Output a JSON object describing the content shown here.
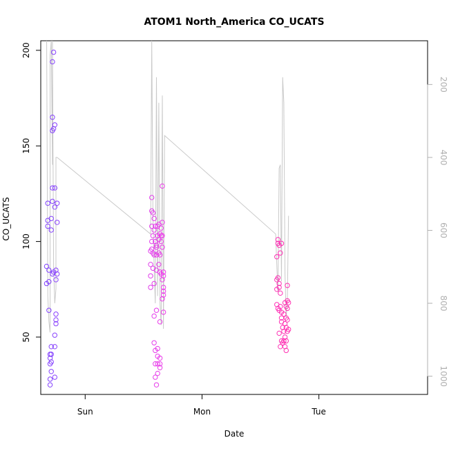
{
  "chart_data": {
    "type": "scatter",
    "title": "ATOM1 North_America CO_UCATS",
    "xlabel": "Date",
    "ylabel": "CO_UCATS",
    "right_axis": {
      "label": "",
      "reversed": true,
      "ticks": [
        200,
        400,
        600,
        800,
        1000
      ],
      "range": [
        80,
        1050
      ],
      "color": "#b0b0b0"
    },
    "x_ticks": [
      {
        "label": "Sun",
        "x": 0
      },
      {
        "label": "Mon",
        "x": 1
      },
      {
        "label": "Tue",
        "x": 2
      }
    ],
    "xlim": [
      -0.38,
      2.93
    ],
    "ylim": [
      20,
      205
    ],
    "y_ticks": [
      50,
      100,
      150,
      200
    ],
    "grid": false,
    "legend": "none",
    "colors": {
      "early": "#7f3fff",
      "mid": "#f03ae8",
      "late": "#ff2fb0",
      "line": "#c9c9c9",
      "axis": "#000000"
    },
    "series": [
      {
        "points": [
          {
            "x": -0.33,
            "y": 87
          },
          {
            "x": -0.33,
            "y": 78
          },
          {
            "x": -0.32,
            "y": 111
          },
          {
            "x": -0.32,
            "y": 108
          },
          {
            "x": -0.32,
            "y": 120
          },
          {
            "x": -0.31,
            "y": 64
          },
          {
            "x": -0.31,
            "y": 85
          },
          {
            "x": -0.31,
            "y": 79
          },
          {
            "x": -0.3,
            "y": 41
          },
          {
            "x": -0.3,
            "y": 39
          },
          {
            "x": -0.3,
            "y": 36
          },
          {
            "x": -0.3,
            "y": 28
          },
          {
            "x": -0.3,
            "y": 25
          },
          {
            "x": -0.29,
            "y": 45
          },
          {
            "x": -0.29,
            "y": 41
          },
          {
            "x": -0.29,
            "y": 37
          },
          {
            "x": -0.29,
            "y": 32
          },
          {
            "x": -0.29,
            "y": 106
          },
          {
            "x": -0.29,
            "y": 112
          },
          {
            "x": -0.28,
            "y": 128
          },
          {
            "x": -0.28,
            "y": 158
          },
          {
            "x": -0.28,
            "y": 194
          },
          {
            "x": -0.28,
            "y": 165
          },
          {
            "x": -0.28,
            "y": 83
          },
          {
            "x": -0.28,
            "y": 121
          },
          {
            "x": -0.27,
            "y": 84
          },
          {
            "x": -0.27,
            "y": 159
          },
          {
            "x": -0.27,
            "y": 199
          },
          {
            "x": -0.26,
            "y": 161
          },
          {
            "x": -0.26,
            "y": 118
          },
          {
            "x": -0.26,
            "y": 128
          },
          {
            "x": -0.26,
            "y": 51
          },
          {
            "x": -0.26,
            "y": 45
          },
          {
            "x": -0.26,
            "y": 29
          },
          {
            "x": -0.25,
            "y": 57
          },
          {
            "x": -0.25,
            "y": 59
          },
          {
            "x": -0.25,
            "y": 62
          },
          {
            "x": -0.25,
            "y": 85
          },
          {
            "x": -0.25,
            "y": 80
          },
          {
            "x": -0.24,
            "y": 83
          },
          {
            "x": -0.24,
            "y": 110
          },
          {
            "x": -0.24,
            "y": 120
          },
          {
            "x": 0.56,
            "y": 95
          },
          {
            "x": 0.56,
            "y": 88
          },
          {
            "x": 0.56,
            "y": 82
          },
          {
            "x": 0.56,
            "y": 76
          },
          {
            "x": 0.57,
            "y": 123
          },
          {
            "x": 0.57,
            "y": 116
          },
          {
            "x": 0.57,
            "y": 108
          },
          {
            "x": 0.57,
            "y": 100
          },
          {
            "x": 0.57,
            "y": 96
          },
          {
            "x": 0.58,
            "y": 115
          },
          {
            "x": 0.58,
            "y": 103
          },
          {
            "x": 0.58,
            "y": 94
          },
          {
            "x": 0.58,
            "y": 86
          },
          {
            "x": 0.59,
            "y": 112
          },
          {
            "x": 0.59,
            "y": 106
          },
          {
            "x": 0.59,
            "y": 93
          },
          {
            "x": 0.59,
            "y": 78
          },
          {
            "x": 0.59,
            "y": 61
          },
          {
            "x": 0.59,
            "y": 47
          },
          {
            "x": 0.6,
            "y": 43
          },
          {
            "x": 0.6,
            "y": 36
          },
          {
            "x": 0.6,
            "y": 29
          },
          {
            "x": 0.6,
            "y": 108
          },
          {
            "x": 0.6,
            "y": 100
          },
          {
            "x": 0.61,
            "y": 97
          },
          {
            "x": 0.61,
            "y": 98
          },
          {
            "x": 0.61,
            "y": 93
          },
          {
            "x": 0.61,
            "y": 85
          },
          {
            "x": 0.61,
            "y": 64
          },
          {
            "x": 0.61,
            "y": 25
          },
          {
            "x": 0.62,
            "y": 36
          },
          {
            "x": 0.62,
            "y": 31
          },
          {
            "x": 0.62,
            "y": 44
          },
          {
            "x": 0.62,
            "y": 40
          },
          {
            "x": 0.62,
            "y": 108
          },
          {
            "x": 0.62,
            "y": 103
          },
          {
            "x": 0.63,
            "y": 101
          },
          {
            "x": 0.63,
            "y": 94
          },
          {
            "x": 0.63,
            "y": 88
          },
          {
            "x": 0.63,
            "y": 109
          },
          {
            "x": 0.64,
            "y": 104
          },
          {
            "x": 0.64,
            "y": 93
          },
          {
            "x": 0.64,
            "y": 84
          },
          {
            "x": 0.64,
            "y": 58
          },
          {
            "x": 0.64,
            "y": 36
          },
          {
            "x": 0.64,
            "y": 39
          },
          {
            "x": 0.64,
            "y": 34
          },
          {
            "x": 0.65,
            "y": 107
          },
          {
            "x": 0.65,
            "y": 100
          },
          {
            "x": 0.65,
            "y": 103
          },
          {
            "x": 0.65,
            "y": 83
          },
          {
            "x": 0.66,
            "y": 110
          },
          {
            "x": 0.66,
            "y": 97
          },
          {
            "x": 0.66,
            "y": 103
          },
          {
            "x": 0.66,
            "y": 80
          },
          {
            "x": 0.66,
            "y": 70
          },
          {
            "x": 0.66,
            "y": 129
          },
          {
            "x": 0.67,
            "y": 76
          },
          {
            "x": 0.67,
            "y": 74
          },
          {
            "x": 0.67,
            "y": 72
          },
          {
            "x": 0.67,
            "y": 82
          },
          {
            "x": 0.67,
            "y": 84
          },
          {
            "x": 0.67,
            "y": 63
          },
          {
            "x": 1.64,
            "y": 75
          },
          {
            "x": 1.64,
            "y": 67
          },
          {
            "x": 1.64,
            "y": 80
          },
          {
            "x": 1.64,
            "y": 92
          },
          {
            "x": 1.65,
            "y": 101
          },
          {
            "x": 1.65,
            "y": 99
          },
          {
            "x": 1.65,
            "y": 81
          },
          {
            "x": 1.65,
            "y": 65
          },
          {
            "x": 1.66,
            "y": 98
          },
          {
            "x": 1.66,
            "y": 78
          },
          {
            "x": 1.66,
            "y": 76
          },
          {
            "x": 1.66,
            "y": 64
          },
          {
            "x": 1.66,
            "y": 52
          },
          {
            "x": 1.67,
            "y": 45
          },
          {
            "x": 1.67,
            "y": 94
          },
          {
            "x": 1.67,
            "y": 73
          },
          {
            "x": 1.67,
            "y": 66
          },
          {
            "x": 1.68,
            "y": 63
          },
          {
            "x": 1.68,
            "y": 60
          },
          {
            "x": 1.68,
            "y": 58
          },
          {
            "x": 1.68,
            "y": 48
          },
          {
            "x": 1.68,
            "y": 99
          },
          {
            "x": 1.69,
            "y": 47
          },
          {
            "x": 1.69,
            "y": 55
          },
          {
            "x": 1.7,
            "y": 53
          },
          {
            "x": 1.7,
            "y": 48
          },
          {
            "x": 1.7,
            "y": 62
          },
          {
            "x": 1.71,
            "y": 68
          },
          {
            "x": 1.71,
            "y": 57
          },
          {
            "x": 1.71,
            "y": 50
          },
          {
            "x": 1.71,
            "y": 45
          },
          {
            "x": 1.72,
            "y": 66
          },
          {
            "x": 1.72,
            "y": 60
          },
          {
            "x": 1.72,
            "y": 55
          },
          {
            "x": 1.72,
            "y": 48
          },
          {
            "x": 1.72,
            "y": 43
          },
          {
            "x": 1.73,
            "y": 69
          },
          {
            "x": 1.73,
            "y": 65
          },
          {
            "x": 1.73,
            "y": 59
          },
          {
            "x": 1.73,
            "y": 53
          },
          {
            "x": 1.73,
            "y": 77
          },
          {
            "x": 1.74,
            "y": 68
          },
          {
            "x": 1.74,
            "y": 54
          }
        ]
      }
    ],
    "pressure_line": {
      "axis": "right",
      "points": [
        {
          "x": -0.33,
          "p": 60
        },
        {
          "x": -0.32,
          "p": 780
        },
        {
          "x": -0.31,
          "p": 850
        },
        {
          "x": -0.3,
          "p": 880
        },
        {
          "x": -0.3,
          "p": 120
        },
        {
          "x": -0.29,
          "p": 80
        },
        {
          "x": -0.28,
          "p": 420
        },
        {
          "x": -0.28,
          "p": 60
        },
        {
          "x": -0.27,
          "p": 700
        },
        {
          "x": -0.26,
          "p": 800
        },
        {
          "x": -0.25,
          "p": 760
        },
        {
          "x": -0.25,
          "p": 400
        },
        {
          "x": -0.24,
          "p": 400
        },
        {
          "x": 0.56,
          "p": 610
        },
        {
          "x": 0.57,
          "p": 80
        },
        {
          "x": 0.58,
          "p": 560
        },
        {
          "x": 0.59,
          "p": 700
        },
        {
          "x": 0.6,
          "p": 800
        },
        {
          "x": 0.61,
          "p": 180
        },
        {
          "x": 0.62,
          "p": 780
        },
        {
          "x": 0.63,
          "p": 250
        },
        {
          "x": 0.64,
          "p": 800
        },
        {
          "x": 0.65,
          "p": 860
        },
        {
          "x": 0.66,
          "p": 230
        },
        {
          "x": 0.67,
          "p": 870
        },
        {
          "x": 0.68,
          "p": 340
        },
        {
          "x": 1.63,
          "p": 610
        },
        {
          "x": 1.64,
          "p": 700
        },
        {
          "x": 1.65,
          "p": 770
        },
        {
          "x": 1.66,
          "p": 430
        },
        {
          "x": 1.67,
          "p": 420
        },
        {
          "x": 1.68,
          "p": 740
        },
        {
          "x": 1.69,
          "p": 180
        },
        {
          "x": 1.7,
          "p": 250
        },
        {
          "x": 1.71,
          "p": 720
        },
        {
          "x": 1.72,
          "p": 840
        },
        {
          "x": 1.73,
          "p": 790
        },
        {
          "x": 1.74,
          "p": 560
        }
      ]
    }
  }
}
